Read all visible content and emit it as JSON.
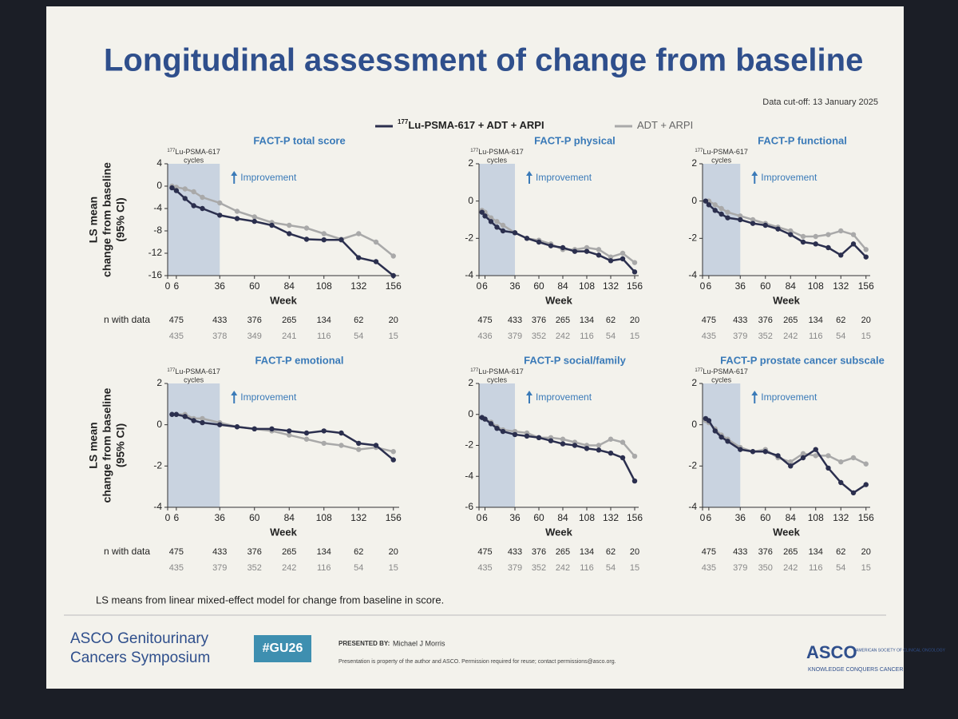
{
  "title": "Longitudinal assessment of change from baseline",
  "data_cutoff": "Data cut-off: 13 January 2025",
  "legend": [
    {
      "sup": "177",
      "name": "Lu-PSMA-617 + ADT + ARPI",
      "color": "#2b2f4e"
    },
    {
      "name": "ADT + ARPI",
      "color": "#a9a9a9"
    }
  ],
  "footnote": "LS means from linear mixed-effect model for change from baseline in score.",
  "footer": {
    "meeting_line1": "ASCO Genitourinary",
    "meeting_line2": "Cancers Symposium",
    "hashtag": "#GU26",
    "presented_by": "PRESENTED BY:",
    "presenter": "Michael J Morris",
    "notice": "Presentation is property of the author and ASCO. Permission required for reuse; contact permissions@asco.org.",
    "logo": "ASCO",
    "logo_sub": "AMERICAN SOCIETY OF CLINICAL ONCOLOGY",
    "tagline": "KNOWLEDGE CONQUERS CANCER"
  },
  "chart_data": [
    {
      "type": "line",
      "title": "FACT-P total score",
      "cycles_label": {
        "sup": "177",
        "text": "Lu-PSMA-617",
        "line2": "cycles"
      },
      "improvement": "Improvement",
      "x_label": "Week",
      "y_label": [
        "LS mean",
        "change from baseline",
        "(95% CI)"
      ],
      "shaded_x": [
        0,
        36
      ],
      "x": [
        3,
        6,
        12,
        18,
        24,
        36,
        48,
        60,
        72,
        84,
        96,
        108,
        120,
        132,
        144,
        156
      ],
      "series": [
        {
          "color": "#2b2f4e",
          "values": [
            -0.3,
            -0.8,
            -2.2,
            -3.5,
            -4,
            -5.2,
            -5.8,
            -6.3,
            -7,
            -8.5,
            -9.5,
            -9.6,
            -9.6,
            -12.8,
            -13.5,
            -16
          ]
        },
        {
          "color": "#a9a9a9",
          "values": [
            0,
            -0.2,
            -0.5,
            -1,
            -2,
            -3,
            -4.5,
            -5.5,
            -6.5,
            -7,
            -7.5,
            -8.5,
            -9.5,
            -8.5,
            -10,
            -12.5
          ]
        }
      ],
      "xlim": [
        0,
        160
      ],
      "ylim": [
        -16,
        4
      ],
      "xticks": [
        0,
        6,
        36,
        60,
        84,
        108,
        132,
        156
      ],
      "yticks": [
        -16,
        -12,
        -8,
        -4,
        0,
        4
      ],
      "n_table": {
        "label": "n with data",
        "x": [
          6,
          36,
          60,
          84,
          108,
          132,
          156
        ],
        "rows": [
          [
            475,
            433,
            376,
            265,
            134,
            62,
            20
          ],
          [
            435,
            378,
            349,
            241,
            116,
            54,
            15
          ]
        ]
      }
    },
    {
      "type": "line",
      "title": "FACT-P physical",
      "cycles_label": {
        "sup": "177",
        "text": "Lu-PSMA-617",
        "line2": "cycles"
      },
      "improvement": "Improvement",
      "x_label": "Week",
      "shaded_x": [
        0,
        36
      ],
      "x": [
        3,
        6,
        12,
        18,
        24,
        36,
        48,
        60,
        72,
        84,
        96,
        108,
        120,
        132,
        144,
        156
      ],
      "series": [
        {
          "color": "#2b2f4e",
          "values": [
            -0.6,
            -0.8,
            -1.1,
            -1.4,
            -1.6,
            -1.7,
            -2,
            -2.2,
            -2.4,
            -2.5,
            -2.7,
            -2.7,
            -2.9,
            -3.2,
            -3.1,
            -3.8
          ]
        },
        {
          "color": "#a9a9a9",
          "values": [
            -0.5,
            -0.6,
            -0.9,
            -1.1,
            -1.3,
            -1.7,
            -2,
            -2.1,
            -2.3,
            -2.6,
            -2.6,
            -2.5,
            -2.6,
            -3,
            -2.8,
            -3.3
          ]
        }
      ],
      "xlim": [
        0,
        160
      ],
      "ylim": [
        -4,
        2
      ],
      "xticks": [
        0,
        6,
        36,
        60,
        84,
        108,
        132,
        156
      ],
      "yticks": [
        -4,
        -2,
        0,
        2
      ],
      "n_table": {
        "x": [
          6,
          36,
          60,
          84,
          108,
          132,
          156
        ],
        "rows": [
          [
            475,
            433,
            376,
            265,
            134,
            62,
            20
          ],
          [
            436,
            379,
            352,
            242,
            116,
            54,
            15
          ]
        ]
      }
    },
    {
      "type": "line",
      "title": "FACT-P functional",
      "cycles_label": {
        "sup": "177",
        "text": "Lu-PSMA-617",
        "line2": "cycles"
      },
      "improvement": "Improvement",
      "x_label": "Week",
      "shaded_x": [
        0,
        36
      ],
      "x": [
        3,
        6,
        12,
        18,
        24,
        36,
        48,
        60,
        72,
        84,
        96,
        108,
        120,
        132,
        144,
        156
      ],
      "series": [
        {
          "color": "#2b2f4e",
          "values": [
            0,
            -0.2,
            -0.5,
            -0.7,
            -0.9,
            -1,
            -1.2,
            -1.3,
            -1.5,
            -1.8,
            -2.2,
            -2.3,
            -2.5,
            -2.9,
            -2.3,
            -3
          ]
        },
        {
          "color": "#a9a9a9",
          "values": [
            0,
            0,
            -0.2,
            -0.4,
            -0.6,
            -0.8,
            -1,
            -1.2,
            -1.4,
            -1.6,
            -1.9,
            -1.9,
            -1.8,
            -1.6,
            -1.8,
            -2.6
          ]
        }
      ],
      "xlim": [
        0,
        160
      ],
      "ylim": [
        -4,
        2
      ],
      "xticks": [
        0,
        6,
        36,
        60,
        84,
        108,
        132,
        156
      ],
      "yticks": [
        -4,
        -2,
        0,
        2
      ],
      "n_table": {
        "x": [
          6,
          36,
          60,
          84,
          108,
          132,
          156
        ],
        "rows": [
          [
            475,
            433,
            376,
            265,
            134,
            62,
            20
          ],
          [
            435,
            379,
            352,
            242,
            116,
            54,
            15
          ]
        ]
      }
    },
    {
      "type": "line",
      "title": "FACT-P emotional",
      "cycles_label": {
        "sup": "177",
        "text": "Lu-PSMA-617",
        "line2": "cycles"
      },
      "improvement": "Improvement",
      "x_label": "Week",
      "y_label": [
        "LS mean",
        "change from baseline",
        "(95% CI)"
      ],
      "shaded_x": [
        0,
        36
      ],
      "x": [
        3,
        6,
        12,
        18,
        24,
        36,
        48,
        60,
        72,
        84,
        96,
        108,
        120,
        132,
        144,
        156
      ],
      "series": [
        {
          "color": "#2b2f4e",
          "values": [
            0.5,
            0.5,
            0.4,
            0.2,
            0.1,
            0,
            -0.1,
            -0.2,
            -0.2,
            -0.3,
            -0.4,
            -0.3,
            -0.4,
            -0.9,
            -1,
            -1.7
          ]
        },
        {
          "color": "#a9a9a9",
          "values": [
            0.5,
            0.5,
            0.5,
            0.3,
            0.3,
            0.1,
            -0.1,
            -0.2,
            -0.3,
            -0.5,
            -0.7,
            -0.9,
            -1,
            -1.2,
            -1.1,
            -1.3
          ]
        }
      ],
      "xlim": [
        0,
        160
      ],
      "ylim": [
        -4,
        2
      ],
      "xticks": [
        0,
        6,
        36,
        60,
        84,
        108,
        132,
        156
      ],
      "yticks": [
        -4,
        -2,
        0,
        2
      ],
      "n_table": {
        "label": "n with data",
        "x": [
          6,
          36,
          60,
          84,
          108,
          132,
          156
        ],
        "rows": [
          [
            475,
            433,
            376,
            265,
            134,
            62,
            20
          ],
          [
            435,
            379,
            352,
            242,
            116,
            54,
            15
          ]
        ]
      }
    },
    {
      "type": "line",
      "title": "FACT-P social/family",
      "cycles_label": {
        "sup": "177",
        "text": "Lu-PSMA-617",
        "line2": "cycles"
      },
      "improvement": "Improvement",
      "x_label": "Week",
      "shaded_x": [
        0,
        36
      ],
      "x": [
        3,
        6,
        12,
        18,
        24,
        36,
        48,
        60,
        72,
        84,
        96,
        108,
        120,
        132,
        144,
        156
      ],
      "series": [
        {
          "color": "#2b2f4e",
          "values": [
            -0.2,
            -0.3,
            -0.6,
            -0.9,
            -1.1,
            -1.3,
            -1.4,
            -1.5,
            -1.7,
            -1.9,
            -2,
            -2.2,
            -2.3,
            -2.5,
            -2.8,
            -4.3
          ]
        },
        {
          "color": "#a9a9a9",
          "values": [
            -0.2,
            -0.3,
            -0.5,
            -0.8,
            -1,
            -1.1,
            -1.2,
            -1.5,
            -1.5,
            -1.6,
            -1.8,
            -2,
            -2,
            -1.6,
            -1.8,
            -2.7
          ]
        }
      ],
      "xlim": [
        0,
        160
      ],
      "ylim": [
        -6,
        2
      ],
      "xticks": [
        0,
        6,
        36,
        60,
        84,
        108,
        132,
        156
      ],
      "yticks": [
        -6,
        -4,
        -2,
        0,
        2
      ],
      "n_table": {
        "x": [
          6,
          36,
          60,
          84,
          108,
          132,
          156
        ],
        "rows": [
          [
            475,
            433,
            376,
            265,
            134,
            62,
            20
          ],
          [
            435,
            379,
            352,
            242,
            116,
            54,
            15
          ]
        ]
      }
    },
    {
      "type": "line",
      "title": "FACT-P prostate cancer subscale",
      "cycles_label": {
        "sup": "177",
        "text": "Lu-PSMA-617",
        "line2": "cycles"
      },
      "improvement": "Improvement",
      "x_label": "Week",
      "shaded_x": [
        0,
        36
      ],
      "x": [
        3,
        6,
        12,
        18,
        24,
        36,
        48,
        60,
        72,
        84,
        96,
        108,
        120,
        132,
        144,
        156
      ],
      "series": [
        {
          "color": "#2b2f4e",
          "values": [
            0.3,
            0.2,
            -0.3,
            -0.6,
            -0.8,
            -1.2,
            -1.3,
            -1.3,
            -1.5,
            -2,
            -1.6,
            -1.2,
            -2.1,
            -2.8,
            -3.3,
            -2.9
          ]
        },
        {
          "color": "#a9a9a9",
          "values": [
            0.2,
            0.1,
            -0.2,
            -0.5,
            -0.7,
            -1.1,
            -1.3,
            -1.2,
            -1.6,
            -1.8,
            -1.4,
            -1.5,
            -1.5,
            -1.8,
            -1.6,
            -1.9
          ]
        }
      ],
      "xlim": [
        0,
        160
      ],
      "ylim": [
        -4,
        2
      ],
      "xticks": [
        0,
        6,
        36,
        60,
        84,
        108,
        132,
        156
      ],
      "yticks": [
        -4,
        -2,
        0,
        2
      ],
      "n_table": {
        "x": [
          6,
          36,
          60,
          84,
          108,
          132,
          156
        ],
        "rows": [
          [
            475,
            433,
            376,
            265,
            134,
            62,
            20
          ],
          [
            435,
            379,
            350,
            242,
            116,
            54,
            15
          ]
        ]
      }
    }
  ]
}
